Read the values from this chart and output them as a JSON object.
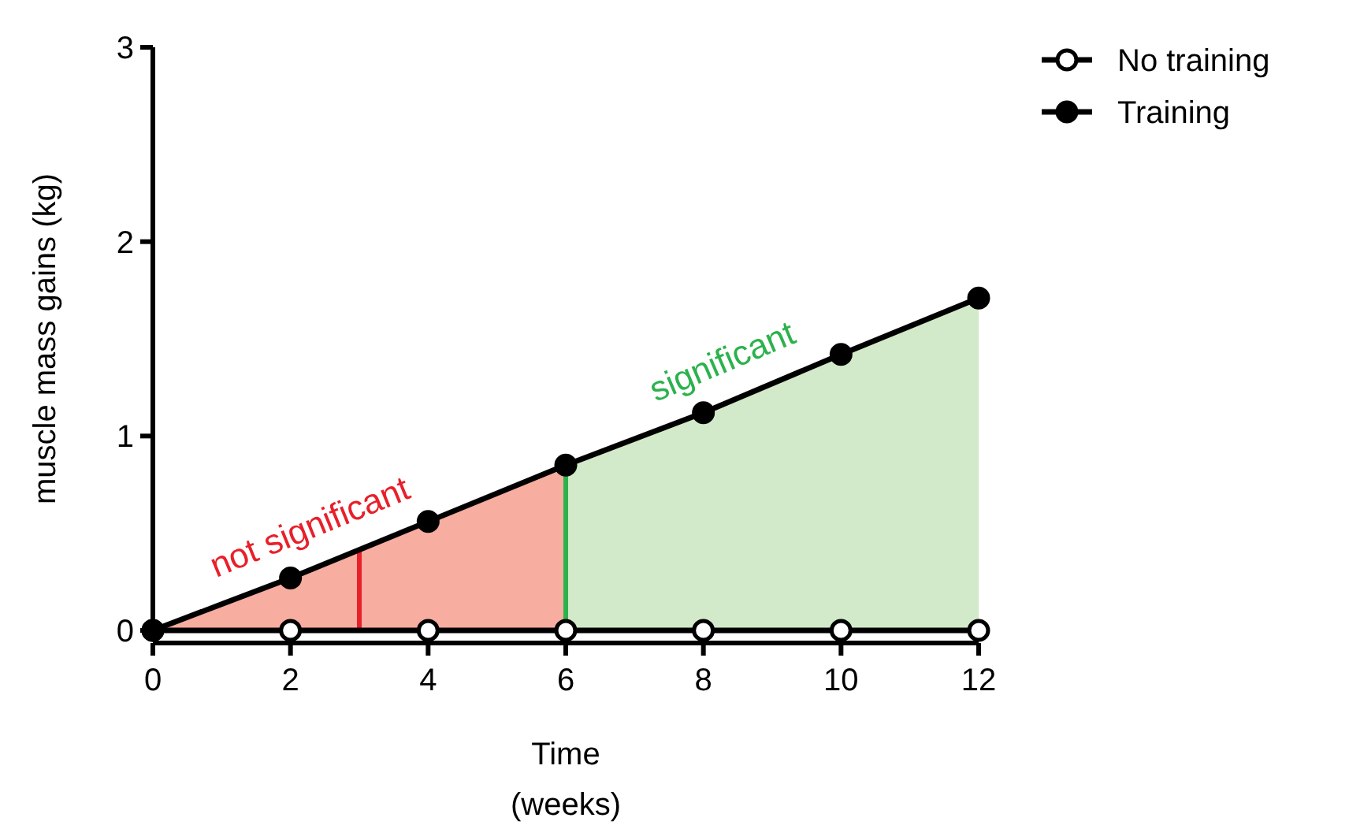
{
  "chart_data": {
    "type": "line",
    "xlabel": "Time\n(weeks)",
    "ylabel": "muscle mass gains (kg)",
    "x": [
      0,
      2,
      4,
      6,
      8,
      10,
      12
    ],
    "series": [
      {
        "type": "area",
        "color": "#f7ad9f",
        "marker": "none",
        "x": [
          0,
          2,
          4,
          6
        ],
        "values": [
          0,
          0.27,
          0.56,
          0.85
        ]
      },
      {
        "type": "area",
        "color": "#d2eac9",
        "marker": "none",
        "x": [
          6,
          8,
          10,
          12
        ],
        "values": [
          0.85,
          1.12,
          1.42,
          1.71
        ]
      },
      {
        "name": "No training",
        "color": "#000000",
        "colors": [
          "#ffffff",
          "#ffffff",
          "#ffffff",
          "#ffffff",
          "#ffffff",
          "#ffffff",
          "#ffffff"
        ],
        "values": [
          0,
          0,
          0,
          0,
          0,
          0,
          0
        ]
      },
      {
        "name": "Training",
        "color": "#000000",
        "values": [
          0,
          0.27,
          0.56,
          0.85,
          1.12,
          1.42,
          1.71
        ]
      }
    ],
    "ref_lines": [
      {
        "axis": "x",
        "value": 3,
        "color": "#e8202a"
      },
      {
        "axis": "x",
        "value": 6,
        "color": "#2bb24c"
      }
    ],
    "annotations": [
      "not significant",
      "significant"
    ],
    "xlim": [
      0,
      12
    ],
    "xticks": [
      0,
      2,
      4,
      6,
      8,
      10,
      12
    ],
    "ylim": [
      0,
      3
    ],
    "yticks": [
      0,
      1,
      2,
      3
    ],
    "marker": "circle",
    "line_style": "solid",
    "grid": false,
    "legend": "top right"
  }
}
